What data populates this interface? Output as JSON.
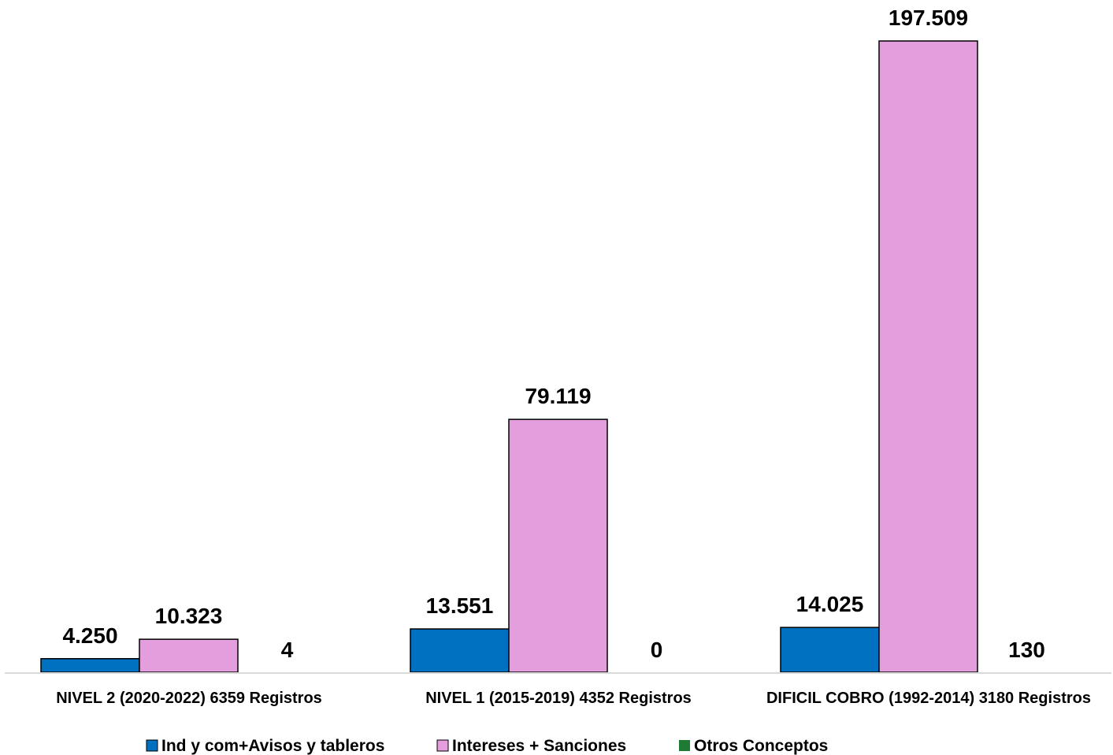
{
  "chart_data": {
    "type": "bar",
    "title": "",
    "xlabel": "",
    "ylabel": "",
    "ylim": [
      0,
      197509
    ],
    "grid": false,
    "legend_position": "bottom",
    "categories": [
      "NIVEL 2 (2020-2022) 6359 Registros",
      "NIVEL 1 (2015-2019) 4352 Registros",
      "DIFICIL COBRO (1992-2014) 3180 Registros"
    ],
    "series": [
      {
        "name": "Ind y com+Avisos y tableros",
        "color": "#0070c0",
        "values": [
          4250,
          13551,
          14025
        ],
        "labels": [
          "4.250",
          "13.551",
          "14.025"
        ]
      },
      {
        "name": "Intereses + Sanciones",
        "color": "#e49edd",
        "values": [
          10323,
          79119,
          197509
        ],
        "labels": [
          "10.323",
          "79.119",
          "197.509"
        ]
      },
      {
        "name": "Otros Conceptos",
        "color": "#1e7b34",
        "values": [
          4,
          0,
          130
        ],
        "labels": [
          "4",
          "0",
          "130"
        ]
      }
    ]
  }
}
